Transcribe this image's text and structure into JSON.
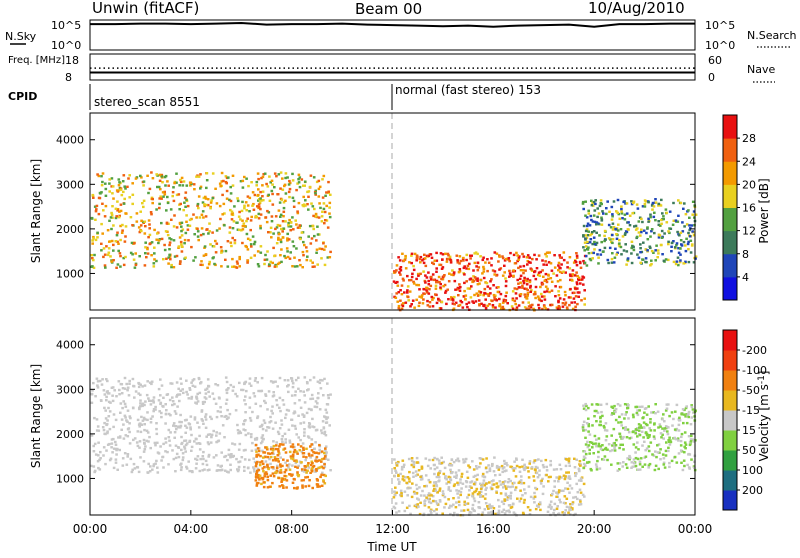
{
  "header": {
    "site": "Unwin (fitACF)",
    "beam": "Beam 00",
    "date": "10/Aug/2010"
  },
  "chart_data": [
    {
      "type": "line",
      "panel": "noise-panel",
      "left_label": "N.Sky",
      "right_label": "N.Search",
      "left_ticks": [
        "10^5",
        "10^0"
      ],
      "right_ticks": [
        "10^5",
        "10^0"
      ],
      "scale": "log",
      "series": [
        {
          "style": "solid",
          "values": [
            4.6,
            4.6,
            4.7,
            4.7,
            4.6,
            4.7,
            4.8,
            4.5,
            4.6,
            4.6,
            4.7,
            4.5,
            4.4,
            4.3,
            4.2,
            4.3,
            4.1,
            4.3,
            4.4,
            4.5,
            4.1,
            4.6,
            4.6,
            4.7,
            4.7
          ]
        },
        {
          "style": "dotted",
          "values": []
        }
      ]
    },
    {
      "type": "line",
      "panel": "freq-panel",
      "left_label": "Freq. [MHz]",
      "right_label": "Nave",
      "left_ticks": [
        "18",
        "8"
      ],
      "right_ticks": [
        "60",
        "0"
      ],
      "series": [
        {
          "style": "dotted",
          "values": [
            12.5,
            12.5,
            12.5,
            12.5,
            12.5,
            12.5,
            12.5,
            12.5,
            12.5,
            12.5,
            12.5,
            12.5,
            12.5,
            12.5,
            12.5,
            12.5,
            12.5,
            12.5,
            12.5,
            12.5,
            12.5,
            12.5,
            12.5,
            12.5,
            12.5
          ]
        },
        {
          "style": "solid",
          "values": [
            10.5,
            10.5,
            10.5,
            10.5,
            10.5,
            10.5,
            10.5,
            10.5,
            10.5,
            10.5,
            10.5,
            10.5,
            10.5,
            10.5,
            10.5,
            10.5,
            10.5,
            10.5,
            10.5,
            10.5,
            10.5,
            10.5,
            10.5,
            10.5,
            10.5
          ]
        }
      ]
    },
    {
      "type": "table",
      "panel": "cpid-panel",
      "label": "CPID",
      "segments": [
        {
          "start_hour": 0,
          "text": "stereo_scan 8551"
        },
        {
          "start_hour": 12,
          "text": "normal (fast stereo) 153"
        }
      ]
    },
    {
      "type": "heatmap",
      "panel": "power",
      "ylabel": "Slant Range [km]",
      "yticks": [
        1000,
        2000,
        3000,
        4000
      ],
      "ylim": [
        180,
        4600
      ],
      "xlim": [
        0,
        24
      ],
      "colorbar_label": "Power [dB]",
      "colorbar_ticks": [
        "4",
        "8",
        "12",
        "16",
        "20",
        "24",
        "28"
      ],
      "colorbar_colors": [
        "#1010e0",
        "#1f45b8",
        "#3c7a5a",
        "#52a040",
        "#e8d020",
        "#f39a00",
        "#f06010",
        "#e81010"
      ],
      "grid": false,
      "features": [
        {
          "region": "morning-arc",
          "start_hour": 0.0,
          "end_hour": 9.5,
          "range_km": [
            1150,
            3300
          ],
          "level_db": 20
        },
        {
          "region": "mid-day-band",
          "start_hour": 12.0,
          "end_hour": 19.6,
          "range_km": [
            200,
            1500
          ],
          "level_db": 27
        },
        {
          "region": "evening-band",
          "start_hour": 19.5,
          "end_hour": 24.0,
          "range_km": [
            1200,
            2700
          ],
          "level_db": 12
        }
      ]
    },
    {
      "type": "heatmap",
      "panel": "velocity",
      "xlabel": "Time UT",
      "xticks": [
        "00:00",
        "04:00",
        "08:00",
        "12:00",
        "16:00",
        "20:00",
        "00:00"
      ],
      "ylabel": "Slant Range [km]",
      "yticks": [
        1000,
        2000,
        3000,
        4000
      ],
      "ylim": [
        180,
        4600
      ],
      "xlim": [
        0,
        24
      ],
      "colorbar_label": "Velocity [m s^-1]",
      "colorbar_ticks": [
        "200",
        "100",
        "50",
        "15",
        "-15",
        "-50",
        "-100",
        "-200"
      ],
      "colorbar_colors": [
        "#1830c0",
        "#1e6e80",
        "#30a040",
        "#80d040",
        "#c8c8c8",
        "#e8b820",
        "#f08010",
        "#f04010",
        "#e81010"
      ],
      "grid": false,
      "features": [
        {
          "region": "morning-arc",
          "start_hour": 0.0,
          "end_hour": 9.5,
          "range_km": [
            1150,
            3300
          ],
          "velocity": 0
        },
        {
          "region": "morning-patch",
          "start_hour": 6.5,
          "end_hour": 9.3,
          "range_km": [
            800,
            1800
          ],
          "velocity": -60
        },
        {
          "region": "mid-day-band",
          "start_hour": 12.0,
          "end_hour": 19.6,
          "range_km": [
            200,
            1500
          ],
          "velocity": -10
        },
        {
          "region": "evening-band",
          "start_hour": 19.5,
          "end_hour": 24.0,
          "range_km": [
            1200,
            2700
          ],
          "velocity": 20
        }
      ]
    }
  ]
}
